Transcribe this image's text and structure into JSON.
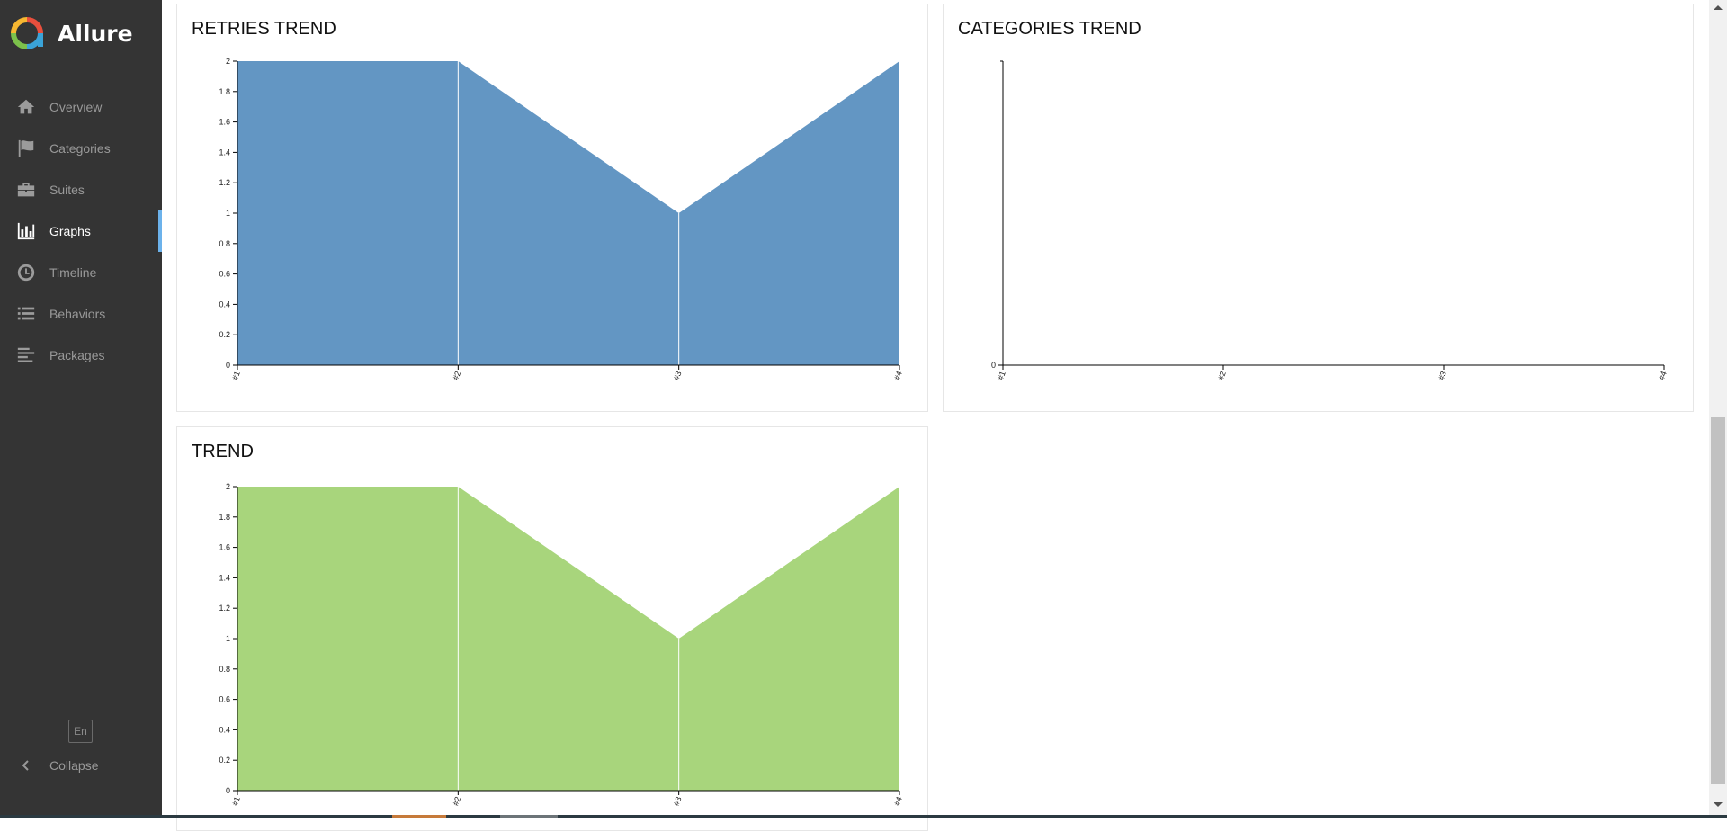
{
  "app": {
    "name": "Allure",
    "logo_colors": [
      "#e94f3d",
      "#f7b731",
      "#7cc14b",
      "#3aa3d8"
    ]
  },
  "sidebar": {
    "items": [
      {
        "label": "Overview",
        "icon": "home-icon",
        "active": false
      },
      {
        "label": "Categories",
        "icon": "flag-icon",
        "active": false
      },
      {
        "label": "Suites",
        "icon": "briefcase-icon",
        "active": false
      },
      {
        "label": "Graphs",
        "icon": "bar-chart-icon",
        "active": true
      },
      {
        "label": "Timeline",
        "icon": "clock-icon",
        "active": false
      },
      {
        "label": "Behaviors",
        "icon": "list-icon",
        "active": false
      },
      {
        "label": "Packages",
        "icon": "align-left-icon",
        "active": false
      }
    ],
    "language": "En",
    "collapse_label": "Collapse",
    "accent_color": "#6cb2eb"
  },
  "widgets": {
    "retries": {
      "title": "RETRIES TREND"
    },
    "categories": {
      "title": "CATEGORIES TREND"
    },
    "trend": {
      "title": "TREND"
    }
  },
  "chart_data": [
    {
      "type": "area",
      "title": "RETRIES TREND",
      "x": [
        "#1",
        "#2",
        "#3",
        "#4"
      ],
      "series": [
        {
          "values": [
            2,
            2,
            1,
            2
          ],
          "color": "#6396c3"
        }
      ],
      "ylim": [
        0,
        2
      ],
      "yticks": [
        "0",
        "0.2",
        "0.4",
        "0.6",
        "0.8",
        "1",
        "1.2",
        "1.4",
        "1.6",
        "1.8",
        "2"
      ]
    },
    {
      "type": "area",
      "title": "CATEGORIES TREND",
      "x": [
        "#1",
        "#2",
        "#3",
        "#4"
      ],
      "series": [],
      "yticks": [
        "0"
      ]
    },
    {
      "type": "area",
      "title": "TREND",
      "x": [
        "#1",
        "#2",
        "#3",
        "#4"
      ],
      "series": [
        {
          "values": [
            2,
            2,
            1,
            2
          ],
          "color": "#a8d57c"
        }
      ],
      "ylim": [
        0,
        2
      ],
      "yticks": [
        "0",
        "0.2",
        "0.4",
        "0.6",
        "0.8",
        "1",
        "1.2",
        "1.4",
        "1.6",
        "1.8",
        "2"
      ]
    }
  ]
}
